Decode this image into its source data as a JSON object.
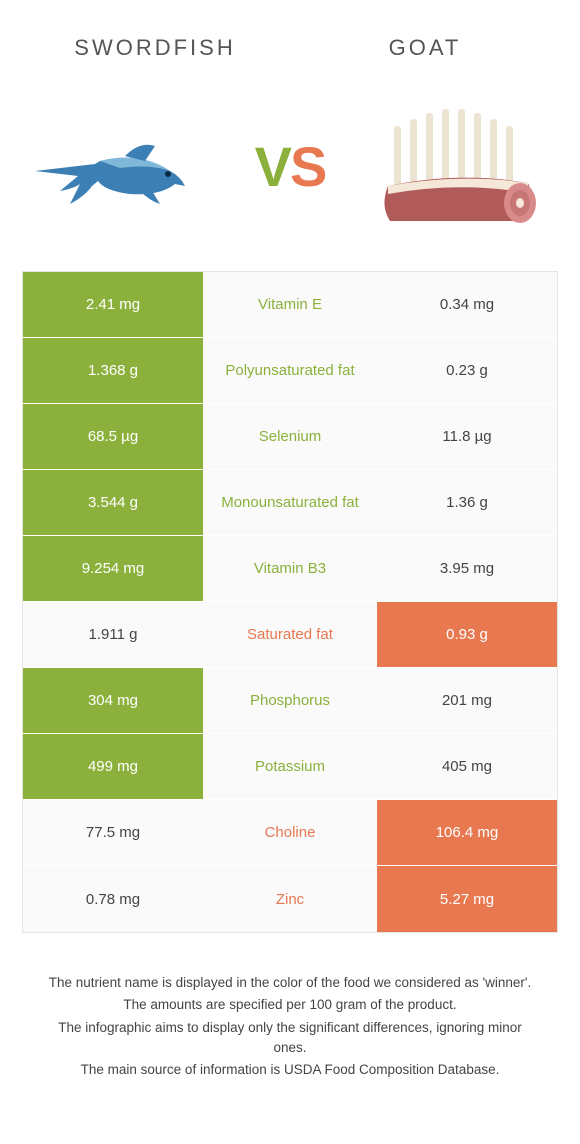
{
  "header": {
    "left_label": "Swordfish",
    "right_label": "Goat",
    "vs_v": "V",
    "vs_s": "S"
  },
  "colors": {
    "green": "#8bb13c",
    "orange": "#e87850",
    "plain_bg": "#fafafa",
    "text": "#444444",
    "border": "#e5e5e5",
    "swordfish_body": "#3b7fb5",
    "swordfish_light": "#7fb8d8",
    "meat_flesh": "#d98b8b",
    "meat_fat": "#f5e8d8",
    "bone": "#ede3d3"
  },
  "rows": [
    {
      "left": "2.41 mg",
      "mid": "Vitamin E",
      "right": "0.34 mg",
      "winner": "left"
    },
    {
      "left": "1.368 g",
      "mid": "Polyunsaturated fat",
      "right": "0.23 g",
      "winner": "left"
    },
    {
      "left": "68.5 µg",
      "mid": "Selenium",
      "right": "11.8 µg",
      "winner": "left"
    },
    {
      "left": "3.544 g",
      "mid": "Monounsaturated fat",
      "right": "1.36 g",
      "winner": "left"
    },
    {
      "left": "9.254 mg",
      "mid": "Vitamin B3",
      "right": "3.95 mg",
      "winner": "left"
    },
    {
      "left": "1.911 g",
      "mid": "Saturated fat",
      "right": "0.93 g",
      "winner": "right"
    },
    {
      "left": "304 mg",
      "mid": "Phosphorus",
      "right": "201 mg",
      "winner": "left"
    },
    {
      "left": "499 mg",
      "mid": "Potassium",
      "right": "405 mg",
      "winner": "left"
    },
    {
      "left": "77.5 mg",
      "mid": "Choline",
      "right": "106.4 mg",
      "winner": "right"
    },
    {
      "left": "0.78 mg",
      "mid": "Zinc",
      "right": "5.27 mg",
      "winner": "right"
    }
  ],
  "footer": {
    "line1": "The nutrient name is displayed in the color of the food we considered as 'winner'.",
    "line2": "The amounts are specified per 100 gram of the product.",
    "line3": "The infographic aims to display only the significant differences, ignoring minor ones.",
    "line4": "The main source of information is USDA Food Composition Database."
  }
}
